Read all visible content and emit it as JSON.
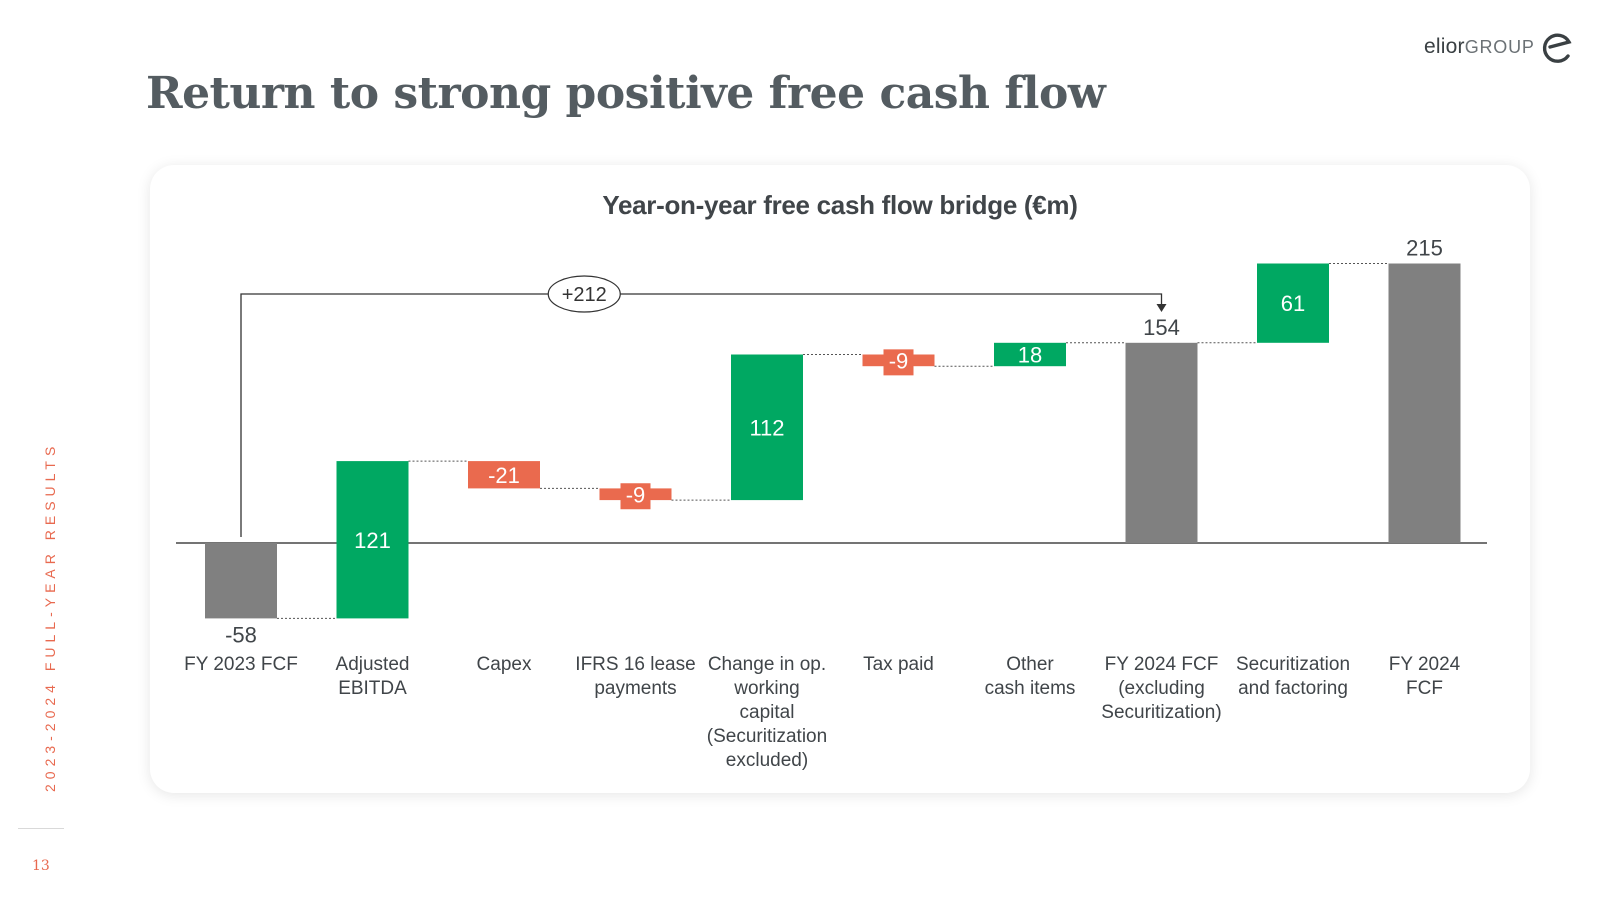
{
  "slide": {
    "title": "Return to strong positive free cash flow",
    "vertical_label": "2023-2024 FULL-YEAR RESULTS",
    "page_number": "13",
    "logo": {
      "brand": "elior",
      "suffix": "GROUP"
    }
  },
  "colors": {
    "positive": "#00a862",
    "negative": "#ea6a4e",
    "total": "#808080",
    "accent": "#e8694f",
    "title": "#545c61"
  },
  "chart_data": {
    "type": "waterfall",
    "title": "Year-on-year free cash flow bridge (€m)",
    "unit": "€m",
    "ylim": [
      -80,
      240
    ],
    "steps": [
      {
        "category": "FY 2023 FCF",
        "kind": "total",
        "value": -58,
        "label": "-58"
      },
      {
        "category": "Adjusted EBITDA",
        "kind": "delta",
        "value": 121,
        "label": "121"
      },
      {
        "category": "Capex",
        "kind": "delta",
        "value": -21,
        "label": "-21"
      },
      {
        "category": "IFRS 16 lease payments",
        "kind": "delta",
        "value": -9,
        "label": "-9"
      },
      {
        "category": "Change in op. working capital (Securitization excluded)",
        "kind": "delta",
        "value": 112,
        "label": "112"
      },
      {
        "category": "Tax paid",
        "kind": "delta",
        "value": -9,
        "label": "-9"
      },
      {
        "category": "Other cash items",
        "kind": "delta",
        "value": 18,
        "label": "18"
      },
      {
        "category": "FY 2024 FCF (excluding Securitization)",
        "kind": "total",
        "value": 154,
        "label": "154"
      },
      {
        "category": "Securitization and factoring",
        "kind": "delta",
        "value": 61,
        "label": "61"
      },
      {
        "category": "FY 2024 FCF",
        "kind": "total",
        "value": 215,
        "label": "215"
      }
    ],
    "category_lines": [
      [
        "FY 2023 FCF"
      ],
      [
        "Adjusted",
        "EBITDA"
      ],
      [
        "Capex"
      ],
      [
        "IFRS 16 lease",
        "payments"
      ],
      [
        "Change in op.",
        "working",
        "capital",
        "(Securitization",
        "excluded)"
      ],
      [
        "Tax paid"
      ],
      [
        "Other",
        "cash items"
      ],
      [
        "FY 2024 FCF",
        "(excluding",
        "Securitization)"
      ],
      [
        "Securitization",
        "and factoring"
      ],
      [
        "FY 2024",
        "FCF"
      ]
    ],
    "annotation": {
      "label": "+212",
      "from_category": "FY 2023 FCF",
      "to_category": "FY 2024 FCF (excluding Securitization)"
    }
  }
}
